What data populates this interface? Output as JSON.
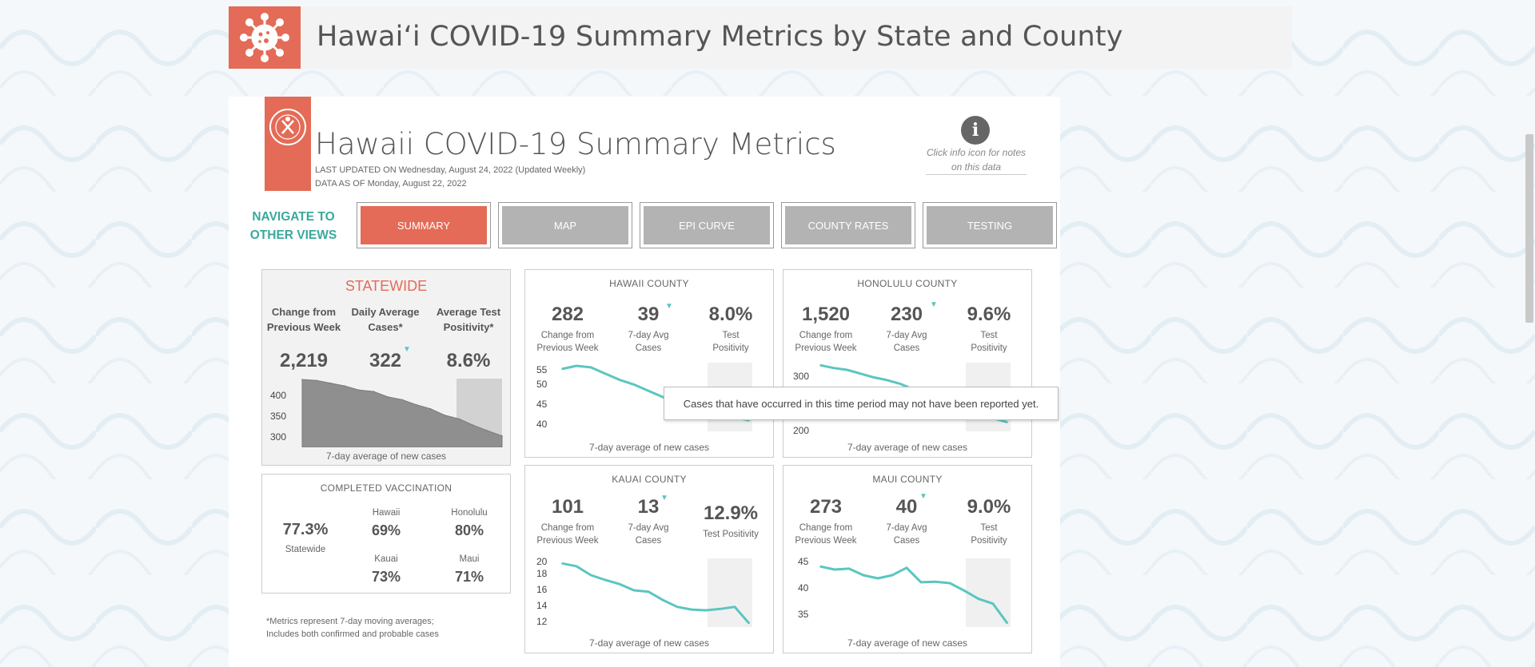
{
  "header": {
    "title": "Hawaiʻi COVID-19 Summary Metrics by State and County"
  },
  "dashboard": {
    "title": "Hawaii COVID-19 Summary Metrics",
    "last_updated": "LAST UPDATED ON Wednesday, August 24, 2022 (Updated Weekly)",
    "data_as_of": "DATA AS OF Monday, August 22, 2022",
    "info_note_line1": "Click info icon for notes",
    "info_note_line2": "on this data",
    "info_icon_label": "i",
    "nav_label_line1": "NAVIGATE TO",
    "nav_label_line2": "OTHER VIEWS",
    "nav": [
      "SUMMARY",
      "MAP",
      "EPI CURVE",
      "COUNTY RATES",
      "TESTING"
    ],
    "nav_active": "SUMMARY"
  },
  "statewide": {
    "title": "STATEWIDE",
    "col1_head": [
      "Change from",
      "Previous Week"
    ],
    "col2_head": [
      "Daily Average",
      "Cases*"
    ],
    "col3_head": [
      "Average Test",
      "Positivity*"
    ],
    "change": "2,219",
    "daily_avg": "322",
    "positivity": "8.6%",
    "trend_marker": "▼",
    "chart_label": "7-day average of new cases",
    "yticks": [
      "400",
      "350",
      "300"
    ]
  },
  "vaccination": {
    "title": "COMPLETED VACCINATION",
    "statewide_value": "77.3%",
    "statewide_label": "Statewide",
    "counties": [
      {
        "name": "Hawaii",
        "value": "69%"
      },
      {
        "name": "Honolulu",
        "value": "80%"
      },
      {
        "name": "Kauai",
        "value": "73%"
      },
      {
        "name": "Maui",
        "value": "71%"
      }
    ]
  },
  "footnote": [
    "*Metrics represent 7-day moving averages;",
    "Includes both confirmed and probable cases"
  ],
  "counties": [
    {
      "name": "HAWAII COUNTY",
      "change": "282",
      "avg": "39",
      "positivity": "8.0%",
      "change_label": [
        "Change from",
        "Previous Week"
      ],
      "avg_label": [
        "7-day Avg",
        "Cases"
      ],
      "pos_label": [
        "Test",
        "Positivity"
      ],
      "yticks": [
        "55",
        "50",
        "45",
        "40"
      ],
      "chart_label": "7-day average of new cases"
    },
    {
      "name": "HONOLULU COUNTY",
      "change": "1,520",
      "avg": "230",
      "positivity": "9.6%",
      "change_label": [
        "Change from",
        "Previous Week"
      ],
      "avg_label": [
        "7-day Avg",
        "Cases"
      ],
      "pos_label": [
        "Test",
        "Positivity"
      ],
      "yticks": [
        "300",
        "200"
      ],
      "chart_label": "7-day average of new cases"
    },
    {
      "name": "KAUAI COUNTY",
      "change": "101",
      "avg": "13",
      "positivity": "12.9%",
      "change_label": [
        "Change from",
        "Previous Week"
      ],
      "avg_label": [
        "7-day Avg",
        "Cases"
      ],
      "pos_label": [
        "Test Positivity",
        ""
      ],
      "yticks": [
        "20",
        "18",
        "16",
        "14",
        "12"
      ],
      "chart_label": "7-day average of new cases"
    },
    {
      "name": "MAUI COUNTY",
      "change": "273",
      "avg": "40",
      "positivity": "9.0%",
      "change_label": [
        "Change from",
        "Previous Week"
      ],
      "avg_label": [
        "7-day Avg",
        "Cases"
      ],
      "pos_label": [
        "Test",
        "Positivity"
      ],
      "yticks": [
        "45",
        "40",
        "35"
      ],
      "chart_label": "7-day average of new cases"
    }
  ],
  "tooltip": "Cases that have occurred in this time period may not have been reported yet.",
  "colors": {
    "accent": "#e46b57",
    "teal": "#5bc6bf",
    "nav_teal": "#3aa99b",
    "gray_btn": "#b3b3b3"
  },
  "chart_data": [
    {
      "type": "area",
      "title": "",
      "xlabel": "7-day average of new cases",
      "ylabel": "",
      "ylim": [
        270,
        420
      ],
      "series": [
        {
          "values": [
            418,
            416,
            410,
            404,
            395,
            392,
            380,
            374,
            363,
            354,
            340,
            332,
            318,
            306,
            295
          ]
        }
      ]
    },
    {
      "type": "line",
      "title": "",
      "xlabel": "7-day average of new cases",
      "ylabel": "",
      "ylim": [
        35,
        56
      ],
      "series": [
        {
          "values": [
            54.5,
            55.5,
            55,
            53,
            51,
            49.5,
            47.5,
            45.5,
            42.5,
            39.5,
            39.5,
            39,
            39,
            38
          ]
        }
      ]
    },
    {
      "type": "line",
      "title": "",
      "xlabel": "7-day average of new cases",
      "ylabel": "",
      "ylim": [
        180,
        320
      ],
      "series": [
        {
          "values": [
            318,
            312,
            308,
            300,
            292,
            286,
            278,
            266,
            258,
            248,
            238,
            226,
            214,
            204,
            196
          ]
        }
      ]
    },
    {
      "type": "line",
      "title": "",
      "xlabel": "7-day average of new cases",
      "ylabel": "",
      "ylim": [
        11,
        20.5
      ],
      "series": [
        {
          "values": [
            20,
            19.6,
            18.3,
            17.6,
            17,
            16.1,
            15.9,
            14.7,
            13.7,
            13.3,
            13.2,
            13.4,
            13.7,
            11.3
          ]
        }
      ]
    },
    {
      "type": "line",
      "title": "",
      "xlabel": "7-day average of new cases",
      "ylabel": "",
      "ylim": [
        32,
        47
      ],
      "series": [
        {
          "values": [
            45.5,
            44.8,
            45,
            43.5,
            42.8,
            43.5,
            45.2,
            41.9,
            42,
            41.7,
            40,
            38.1,
            37,
            32.5
          ]
        }
      ]
    }
  ]
}
